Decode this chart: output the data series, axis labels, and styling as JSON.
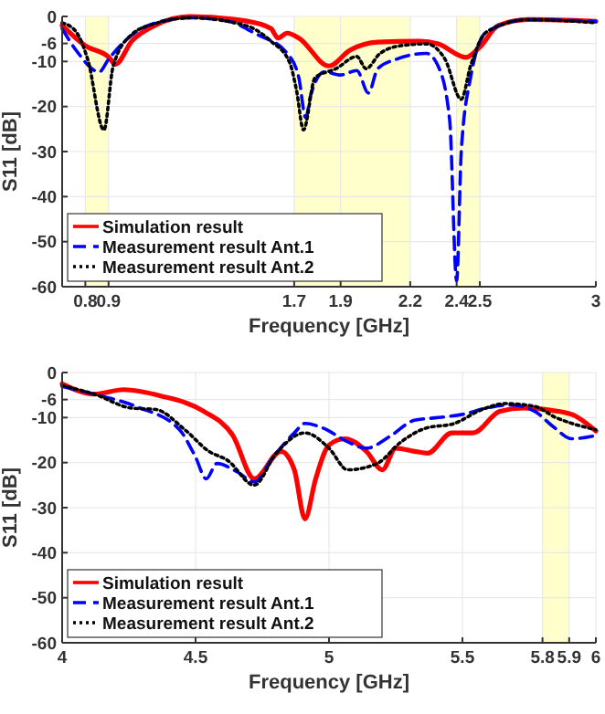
{
  "chart_data": [
    {
      "type": "line",
      "xlabel": "Frequency [GHz]",
      "ylabel": "S11 [dB]",
      "xlim": [
        0.7,
        3
      ],
      "ylim": [
        -60,
        0
      ],
      "xticks": [
        0.8,
        0.9,
        1.7,
        1.9,
        2.2,
        2.4,
        2.5,
        3
      ],
      "yticks": [
        -60,
        -50,
        -40,
        -30,
        -20,
        -10,
        -6,
        0
      ],
      "grid": true,
      "legend": "bottom left",
      "bands": [
        {
          "axis": "x",
          "from": 0.8,
          "to": 0.9,
          "color": "#ffffcc"
        },
        {
          "axis": "x",
          "from": 1.7,
          "to": 2.2,
          "color": "#ffffcc"
        },
        {
          "axis": "x",
          "from": 2.4,
          "to": 2.5,
          "color": "#ffffcc"
        }
      ],
      "series": [
        {
          "name": "Simulation result",
          "color": "#ff0000",
          "line_style": "solid",
          "x": [
            0.7,
            0.8,
            0.9,
            0.93,
            1.0,
            1.1,
            1.25,
            1.49,
            1.6,
            1.63,
            1.67,
            1.72,
            1.85,
            1.94,
            2.06,
            2.24,
            2.32,
            2.44,
            2.5,
            2.58,
            2.71,
            3
          ],
          "values": [
            -2,
            -6.5,
            -9,
            -10.6,
            -5.5,
            -2,
            0,
            -1,
            -2.7,
            -4.8,
            -3.7,
            -4.8,
            -11,
            -7.5,
            -5.7,
            -5.5,
            -6.1,
            -9.1,
            -6.8,
            -2,
            -0.7,
            -1.1
          ]
        },
        {
          "name": "Measurement result Ant.1",
          "color": "#0000ff",
          "line_style": "dashed",
          "x": [
            0.7,
            0.76,
            0.86,
            0.9,
            0.97,
            1.07,
            1.25,
            1.41,
            1.54,
            1.67,
            1.72,
            1.75,
            1.77,
            1.83,
            1.9,
            1.97,
            2.02,
            2.06,
            2.14,
            2.27,
            2.32,
            2.37,
            2.4,
            2.42,
            2.46,
            2.53,
            2.71,
            3
          ],
          "values": [
            -2.7,
            -7.5,
            -12.3,
            -9.5,
            -5.5,
            -2,
            -0.3,
            -1,
            -4,
            -8.2,
            -13.6,
            -22.5,
            -17.7,
            -12.3,
            -13,
            -12,
            -17,
            -11.6,
            -9.5,
            -8.2,
            -11,
            -23,
            -58.7,
            -30,
            -13.6,
            -3.4,
            -0.7,
            -1.1
          ]
        },
        {
          "name": "Measurement result Ant.2",
          "color": "#000000",
          "line_style": "dotted",
          "x": [
            0.7,
            0.76,
            0.81,
            0.88,
            0.92,
            1.0,
            1.1,
            1.25,
            1.49,
            1.6,
            1.68,
            1.71,
            1.74,
            1.79,
            1.88,
            1.97,
            2.01,
            2.07,
            2.16,
            2.27,
            2.35,
            2.42,
            2.46,
            2.53,
            2.71,
            3
          ],
          "values": [
            -1.4,
            -3.4,
            -9.5,
            -25.2,
            -11,
            -4,
            -1.6,
            -0.3,
            -2,
            -5.5,
            -10.2,
            -16.4,
            -25.2,
            -13.6,
            -11.6,
            -8.9,
            -11.6,
            -8.2,
            -6.5,
            -6.1,
            -9.5,
            -18.4,
            -11,
            -3.4,
            -0.7,
            -1.4
          ]
        }
      ]
    },
    {
      "type": "line",
      "xlabel": "Frequency [GHz]",
      "ylabel": "S11 [dB]",
      "xlim": [
        4,
        6
      ],
      "ylim": [
        -60,
        0
      ],
      "xticks": [
        4,
        4.5,
        5,
        5.5,
        5.8,
        5.9,
        6
      ],
      "yticks": [
        -60,
        -50,
        -40,
        -30,
        -20,
        -10,
        -6,
        0
      ],
      "grid": true,
      "legend": "bottom left",
      "bands": [
        {
          "axis": "x",
          "from": 5.8,
          "to": 5.9,
          "color": "#ffffcc"
        }
      ],
      "series": [
        {
          "name": "Simulation result",
          "color": "#ff0000",
          "line_style": "solid",
          "x": [
            4,
            4.12,
            4.23,
            4.37,
            4.53,
            4.64,
            4.72,
            4.82,
            4.87,
            4.91,
            4.95,
            5,
            5.06,
            5.14,
            5.2,
            5.25,
            5.32,
            5.37,
            5.46,
            5.54,
            5.64,
            5.73,
            5.82,
            5.91,
            6
          ],
          "values": [
            -2.5,
            -4.8,
            -3.8,
            -5.2,
            -8.6,
            -14,
            -23.6,
            -17.5,
            -21.6,
            -32.5,
            -23.6,
            -16.1,
            -14.7,
            -17.5,
            -21.6,
            -16.8,
            -17.5,
            -17.9,
            -13.4,
            -13.4,
            -8.6,
            -7.9,
            -8.3,
            -9.3,
            -13
          ]
        },
        {
          "name": "Measurement result Ant.1",
          "color": "#0000ff",
          "line_style": "dashed",
          "x": [
            4,
            4.12,
            4.28,
            4.44,
            4.5,
            4.54,
            4.58,
            4.66,
            4.72,
            4.79,
            4.87,
            4.91,
            4.98,
            5.07,
            5.14,
            5.23,
            5.32,
            5.41,
            5.5,
            5.59,
            5.68,
            5.77,
            5.84,
            5.91,
            6
          ],
          "values": [
            -3.1,
            -4.8,
            -7.6,
            -12.7,
            -18.8,
            -23.6,
            -20.2,
            -22.2,
            -24.3,
            -18.8,
            -13.4,
            -11.3,
            -12.4,
            -15.4,
            -16.8,
            -14.1,
            -10.6,
            -10,
            -9.3,
            -7.9,
            -7.2,
            -8.6,
            -12,
            -14.7,
            -14
          ]
        },
        {
          "name": "Measurement result Ant.2",
          "color": "#000000",
          "line_style": "dotted",
          "x": [
            4,
            4.12,
            4.26,
            4.35,
            4.46,
            4.55,
            4.62,
            4.72,
            4.8,
            4.91,
            5,
            5.07,
            5.18,
            5.27,
            5.36,
            5.47,
            5.57,
            5.66,
            5.77,
            5.85,
            5.91,
            6
          ],
          "values": [
            -2.9,
            -4.8,
            -7.9,
            -8.2,
            -12.7,
            -17.5,
            -19.5,
            -25,
            -18.1,
            -13.4,
            -16.8,
            -21.6,
            -20.2,
            -15.4,
            -12.4,
            -11.3,
            -8.3,
            -6.9,
            -7.5,
            -10,
            -11.3,
            -12.7
          ]
        }
      ]
    }
  ]
}
